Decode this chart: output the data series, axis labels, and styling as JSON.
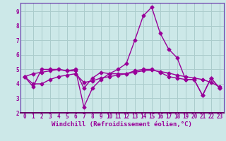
{
  "xlabel": "Windchill (Refroidissement éolien,°C)",
  "x_values": [
    0,
    1,
    2,
    3,
    4,
    5,
    6,
    7,
    8,
    9,
    10,
    11,
    12,
    13,
    14,
    15,
    16,
    17,
    18,
    19,
    20,
    21,
    22,
    23
  ],
  "y_line1": [
    4.5,
    4.0,
    4.0,
    4.3,
    4.5,
    4.6,
    4.7,
    4.1,
    4.2,
    4.4,
    4.5,
    4.6,
    4.7,
    4.8,
    4.9,
    4.95,
    4.85,
    4.75,
    4.6,
    4.5,
    4.4,
    4.3,
    4.1,
    3.8
  ],
  "y_line2": [
    4.5,
    3.8,
    5.0,
    5.0,
    5.0,
    4.9,
    5.0,
    2.4,
    3.7,
    4.3,
    4.7,
    5.0,
    5.4,
    7.0,
    8.7,
    9.3,
    7.5,
    6.4,
    5.8,
    4.3,
    4.3,
    3.2,
    4.4,
    3.7
  ],
  "y_line3": [
    4.5,
    4.7,
    4.8,
    4.9,
    5.0,
    4.9,
    4.9,
    3.7,
    4.4,
    4.8,
    4.7,
    4.7,
    4.7,
    4.9,
    5.0,
    5.0,
    4.8,
    4.5,
    4.4,
    4.3,
    4.3,
    3.2,
    4.4,
    3.7
  ],
  "bg_color": "#cce8e8",
  "grid_color": "#aacccc",
  "line_color": "#990099",
  "marker": "D",
  "marker_size": 2.5,
  "line_width": 1.0,
  "ylim": [
    2.0,
    9.6
  ],
  "xlim": [
    -0.5,
    23.5
  ],
  "yticks": [
    2,
    3,
    4,
    5,
    6,
    7,
    8,
    9
  ],
  "xticks": [
    0,
    1,
    2,
    3,
    4,
    5,
    6,
    7,
    8,
    9,
    10,
    11,
    12,
    13,
    14,
    15,
    16,
    17,
    18,
    19,
    20,
    21,
    22,
    23
  ],
  "tick_fontsize": 5.5,
  "xlabel_fontsize": 6.5
}
